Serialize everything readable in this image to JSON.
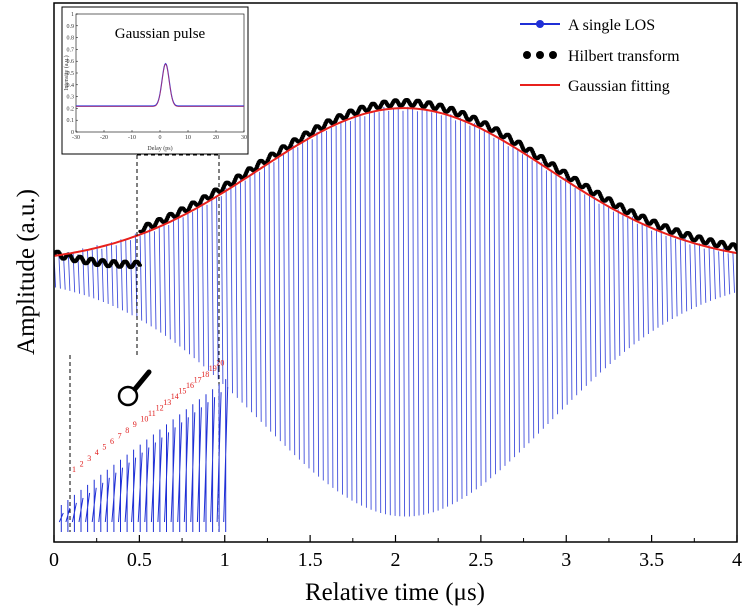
{
  "chart_data": {
    "type": "line",
    "xlabel": "Relative time (μs)",
    "ylabel": "Amplitude (a.u.)",
    "xlim": [
      0,
      4
    ],
    "ylim": [
      -1,
      1
    ],
    "x_ticks": [
      "0",
      "0.5",
      "1",
      "1.5",
      "2",
      "2.5",
      "3",
      "3.5",
      "4"
    ],
    "legend": {
      "position": "top-right",
      "entries": [
        {
          "name": "A single LOS",
          "color": "#1f2fd6",
          "marker": "line-dot"
        },
        {
          "name": "Hilbert transform",
          "color": "#000000",
          "marker": "dots"
        },
        {
          "name": "Gaussian fitting",
          "color": "#e8201c",
          "marker": "line"
        }
      ]
    },
    "series": [
      {
        "name": "A single LOS",
        "type": "oscillation",
        "x_start": 0.0,
        "x_end": 4.0,
        "period": 0.028,
        "baseline": 0.05,
        "envelope_peak": 0.6,
        "envelope_center": 2.05,
        "color": "#1f2fd6"
      },
      {
        "name": "Hilbert transform",
        "type": "envelope_points",
        "x_start": 0.0,
        "x_end": 4.0,
        "peak_x": 2.05,
        "peak_y": 0.63,
        "color": "#000000"
      },
      {
        "name": "Gaussian fitting",
        "type": "gaussian",
        "x_start": 0.0,
        "x_end": 4.0,
        "amplitude": 0.58,
        "center": 2.05,
        "sigma": 0.85,
        "offset": 0.03,
        "color": "#e8201c"
      }
    ],
    "inset_pulse": {
      "title": "Gaussian pulse",
      "xlabel": "Delay (ps)",
      "ylabel": "Intensity (a.u.)",
      "x_ticks": [
        "-30",
        "-20",
        "-10",
        "0",
        "10",
        "20",
        "30"
      ],
      "y_ticks": [
        "0",
        "0.1",
        "0.2",
        "0.3",
        "0.4",
        "0.5",
        "0.6",
        "0.7",
        "0.8",
        "0.9",
        "1"
      ],
      "peak_x": 2,
      "peak_y": 0.58,
      "baseline_y": 0.22,
      "fwhm": 3
    },
    "inset_zoom": {
      "x_range": [
        0.1,
        0.97
      ],
      "pulse_labels": [
        "1",
        "2",
        "3",
        "4",
        "5",
        "6",
        "7",
        "8",
        "9",
        "10",
        "11",
        "12",
        "13",
        "14",
        "15",
        "16",
        "17",
        "18",
        "19",
        "20"
      ]
    }
  }
}
